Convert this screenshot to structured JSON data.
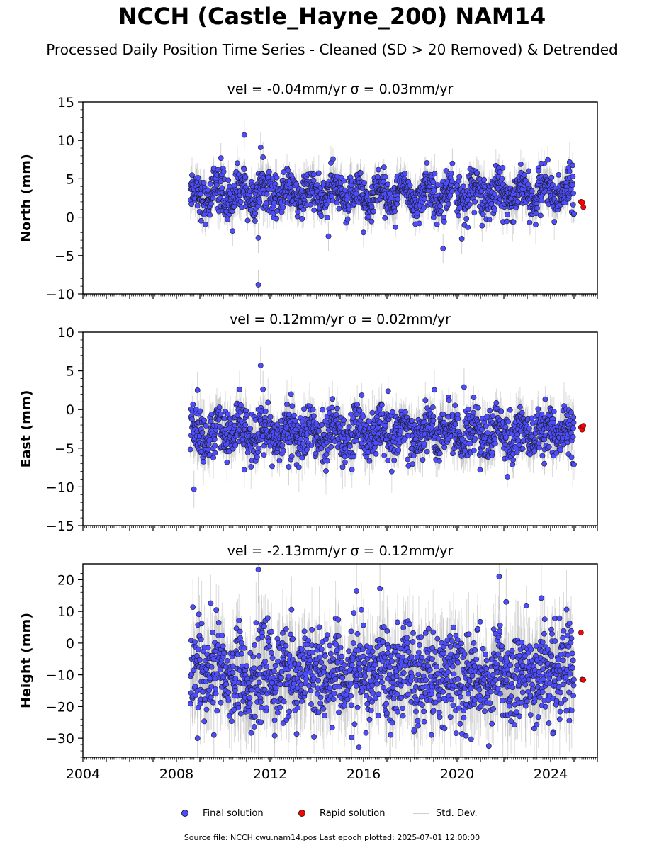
{
  "figure": {
    "title": "NCCH (Castle_Hayne_200) NAM14",
    "subtitle": "Processed Daily Position Time Series - Cleaned (SD > 20 Removed) & Detrended",
    "footer": "Source file: NCCH.cwu.nam14.pos  Last epoch plotted: 2025-07-01 12:00:00"
  },
  "legend": {
    "final": "Final solution",
    "rapid": "Rapid solution",
    "std": "Std. Dev."
  },
  "colors": {
    "final_fill": "#4d4dff",
    "final_edge": "#1a1a1a",
    "rapid_fill": "#ff0000",
    "std_dev": "#b0b0b0"
  },
  "chart_data": [
    {
      "type": "scatter",
      "title": "vel = -0.04mm/yr   σ = 0.03mm/yr",
      "ylabel": "North (mm)",
      "xlim": [
        2004.0,
        2026.0
      ],
      "ylim": [
        -10,
        15
      ],
      "yticks": [
        -10,
        -5,
        0,
        5,
        10,
        15
      ],
      "ytick_labels": [
        "−10",
        "−5",
        "0",
        "5",
        "10",
        "15"
      ],
      "final_range": [
        2008.6,
        2025.0
      ],
      "final_mean": 3.0,
      "final_spread": 1.3,
      "rapid_points": [
        [
          2025.3,
          2.0
        ],
        [
          2025.35,
          1.9
        ],
        [
          2025.4,
          1.3
        ]
      ],
      "outliers": [
        [
          2010.9,
          10.7
        ],
        [
          2011.6,
          9.1
        ],
        [
          2011.7,
          7.8
        ],
        [
          2009.9,
          7.7
        ],
        [
          2011.5,
          -2.7
        ],
        [
          2011.5,
          -8.8
        ],
        [
          2019.4,
          -4.1
        ],
        [
          2014.5,
          -2.5
        ],
        [
          2010.4,
          -1.8
        ],
        [
          2019.8,
          7.0
        ],
        [
          2023.6,
          7.0
        ],
        [
          2016.0,
          -2.0
        ],
        [
          2020.2,
          -2.8
        ]
      ],
      "grid": false,
      "legend_position": "bottom-center"
    },
    {
      "type": "scatter",
      "title": "vel = 0.12mm/yr   σ = 0.02mm/yr",
      "ylabel": "East (mm)",
      "xlim": [
        2004.0,
        2026.0
      ],
      "ylim": [
        -15,
        10
      ],
      "yticks": [
        -15,
        -10,
        -5,
        0,
        5,
        10
      ],
      "ytick_labels": [
        "−15",
        "−10",
        "−5",
        "0",
        "5",
        "10"
      ],
      "final_range": [
        2008.6,
        2025.0
      ],
      "final_mean": -3.0,
      "final_spread": 1.6,
      "rapid_points": [
        [
          2025.3,
          -2.3
        ],
        [
          2025.35,
          -2.6
        ],
        [
          2025.4,
          -2.1
        ]
      ],
      "outliers": [
        [
          2008.75,
          -10.3
        ],
        [
          2011.6,
          5.7
        ],
        [
          2011.7,
          2.6
        ],
        [
          2010.7,
          2.6
        ],
        [
          2008.9,
          2.5
        ],
        [
          2010.9,
          -7.8
        ],
        [
          2020.3,
          2.9
        ],
        [
          2012.8,
          -7.4
        ],
        [
          2012.9,
          2.0
        ],
        [
          2022.4,
          -6.5
        ]
      ],
      "grid": false,
      "legend_position": "bottom-center"
    },
    {
      "type": "scatter",
      "title": "vel = -2.13mm/yr   σ = 0.12mm/yr",
      "ylabel": "Height (mm)",
      "xlim": [
        2004.0,
        2026.0
      ],
      "ylim": [
        -36,
        25
      ],
      "yticks": [
        -30,
        -20,
        -10,
        0,
        10,
        20
      ],
      "ytick_labels": [
        "−30",
        "−20",
        "−10",
        "0",
        "10",
        "20"
      ],
      "xticks": [
        2004,
        2008,
        2012,
        2016,
        2020,
        2024
      ],
      "xtick_labels": [
        "2004",
        "2008",
        "2012",
        "2016",
        "2020",
        "2024"
      ],
      "final_range": [
        2008.6,
        2025.0
      ],
      "final_mean": -10.0,
      "final_spread": 7.0,
      "rapid_points": [
        [
          2025.3,
          3.3
        ],
        [
          2025.35,
          -11.5
        ],
        [
          2025.4,
          -11.6
        ]
      ],
      "outliers": [
        [
          2011.5,
          23.2
        ],
        [
          2021.8,
          21.0
        ],
        [
          2015.7,
          16.5
        ],
        [
          2016.7,
          17.2
        ],
        [
          2022.1,
          13.0
        ],
        [
          2023.6,
          14.2
        ],
        [
          2015.8,
          -32.9
        ],
        [
          2008.9,
          -30.0
        ],
        [
          2020.6,
          -30.3
        ],
        [
          2012.2,
          -29.2
        ],
        [
          2009.6,
          -29.0
        ],
        [
          2018.9,
          -29.0
        ],
        [
          2024.1,
          -28.5
        ]
      ],
      "grid": false,
      "legend_position": "bottom-center"
    }
  ]
}
